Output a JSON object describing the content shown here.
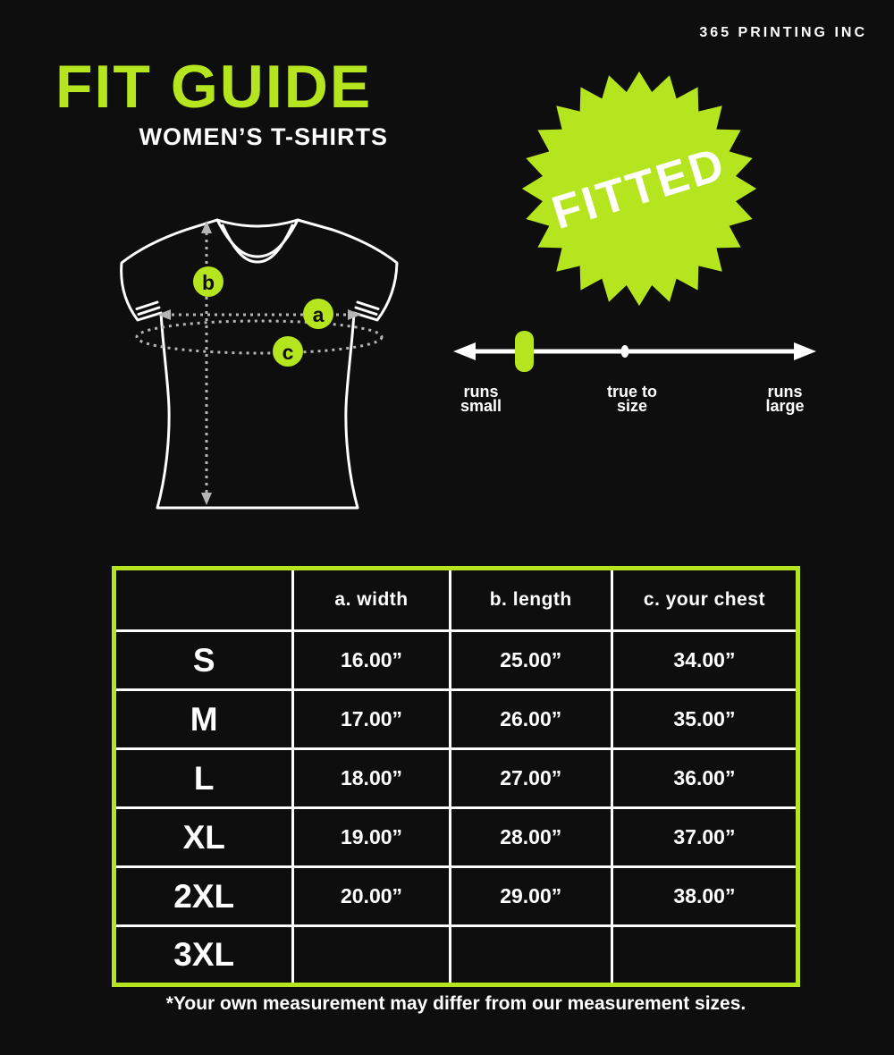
{
  "brand": "365 PRINTING INC",
  "page": {
    "title": "FIT GUIDE",
    "subtitle": "WOMEN’S T-SHIRTS"
  },
  "badge": {
    "label": "FITTED"
  },
  "fit_scale": {
    "left": {
      "line1": "runs",
      "line2": "small"
    },
    "center": {
      "line1": "true to",
      "line2": "size"
    },
    "right": {
      "line1": "runs",
      "line2": "large"
    },
    "marker_position": "runs small"
  },
  "diagram": {
    "marker_a": "a",
    "marker_b": "b",
    "marker_c": "c"
  },
  "table": {
    "columns": [
      "",
      "a. width",
      "b. length",
      "c. your chest"
    ],
    "rows": [
      {
        "size": "S",
        "width": "16.00”",
        "length": "25.00”",
        "chest": "34.00”"
      },
      {
        "size": "M",
        "width": "17.00”",
        "length": "26.00”",
        "chest": "35.00”"
      },
      {
        "size": "L",
        "width": "18.00”",
        "length": "27.00”",
        "chest": "36.00”"
      },
      {
        "size": "XL",
        "width": "19.00”",
        "length": "28.00”",
        "chest": "37.00”"
      },
      {
        "size": "2XL",
        "width": "20.00”",
        "length": "29.00”",
        "chest": "38.00”"
      },
      {
        "size": "3XL",
        "width": "",
        "length": "",
        "chest": ""
      }
    ]
  },
  "footnote": "*Your own measurement may differ from our measurement sizes.",
  "colors": {
    "accent": "#b5e51e",
    "background": "#0e0e0e",
    "text": "#ffffff"
  }
}
